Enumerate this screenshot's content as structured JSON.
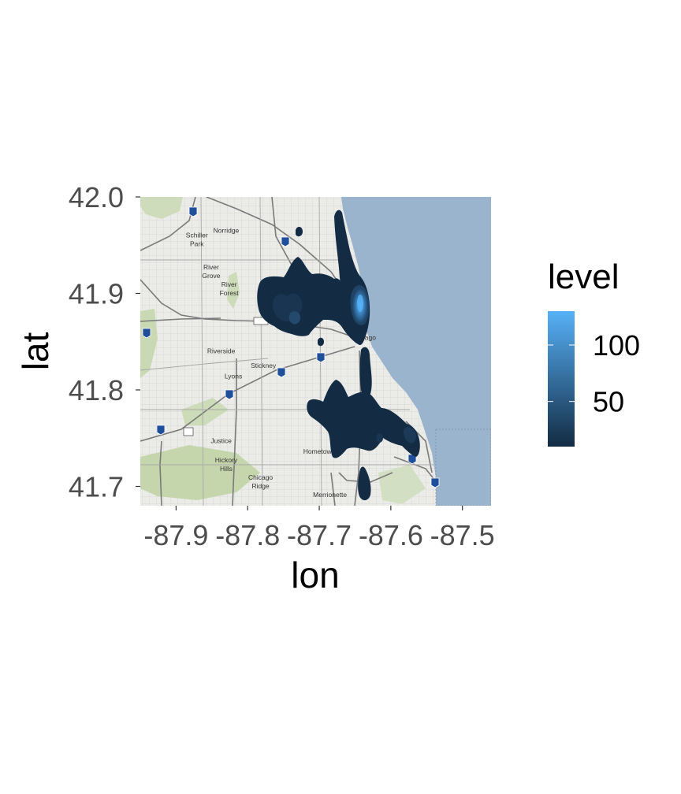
{
  "chart_data": {
    "type": "heatmap",
    "subtype": "density contour map (filled levels) over a basemap",
    "xlabel": "lon",
    "ylabel": "lat",
    "xlim": [
      -87.95,
      -87.46
    ],
    "ylim": [
      41.68,
      42.0
    ],
    "x_ticks": [
      -87.9,
      -87.8,
      -87.7,
      -87.6,
      -87.5
    ],
    "x_tick_labels": [
      "-87.9",
      "-87.8",
      "-87.7",
      "-87.6",
      "-87.5"
    ],
    "y_ticks": [
      41.7,
      41.8,
      41.9,
      42.0
    ],
    "y_tick_labels": [
      "41.7",
      "41.8",
      "41.9",
      "42.0"
    ],
    "grid": false,
    "legend": {
      "title": "level",
      "position": "right",
      "range": [
        10,
        130
      ],
      "ticks": [
        50,
        100
      ],
      "tick_labels": [
        "50",
        "100"
      ],
      "low_color": "#132B43",
      "high_color": "#56B1F7"
    },
    "map_labels": [
      {
        "text": "Norridge",
        "lon": -87.83,
        "lat": 41.963
      },
      {
        "text": "Schiller",
        "lon": -87.871,
        "lat": 41.958
      },
      {
        "text": "Park",
        "lon": -87.871,
        "lat": 41.949
      },
      {
        "text": "River",
        "lon": -87.851,
        "lat": 41.925
      },
      {
        "text": "Grove",
        "lon": -87.851,
        "lat": 41.916
      },
      {
        "text": "River",
        "lon": -87.826,
        "lat": 41.907
      },
      {
        "text": "Forest",
        "lon": -87.826,
        "lat": 41.898
      },
      {
        "text": "Chicago",
        "lon": -87.638,
        "lat": 41.852
      },
      {
        "text": "Riverside",
        "lon": -87.837,
        "lat": 41.838
      },
      {
        "text": "Stickney",
        "lon": -87.778,
        "lat": 41.823
      },
      {
        "text": "Lyons",
        "lon": -87.82,
        "lat": 41.812
      },
      {
        "text": "Justice",
        "lon": -87.837,
        "lat": 41.745
      },
      {
        "text": "Hickory",
        "lon": -87.83,
        "lat": 41.725
      },
      {
        "text": "Hills",
        "lon": -87.83,
        "lat": 41.716
      },
      {
        "text": "Hometown",
        "lon": -87.7,
        "lat": 41.734
      },
      {
        "text": "Chicago",
        "lon": -87.782,
        "lat": 41.707
      },
      {
        "text": "Ridge",
        "lon": -87.782,
        "lat": 41.698
      },
      {
        "text": "Merrionette",
        "lon": -87.685,
        "lat": 41.689
      }
    ],
    "density_peaks": [
      {
        "lon": -87.626,
        "lat": 41.893,
        "level": 130
      },
      {
        "lon": -87.76,
        "lat": 41.89,
        "level": 20
      },
      {
        "lon": -87.67,
        "lat": 41.773,
        "level": 15
      },
      {
        "lon": -87.59,
        "lat": 41.763,
        "level": 15
      }
    ]
  },
  "colors": {
    "water": "#9bb4cd",
    "land": "#ebebe8",
    "park": "#c9d9b3",
    "road": "#7a7a7a",
    "grid_street": "#cfcfcf"
  }
}
